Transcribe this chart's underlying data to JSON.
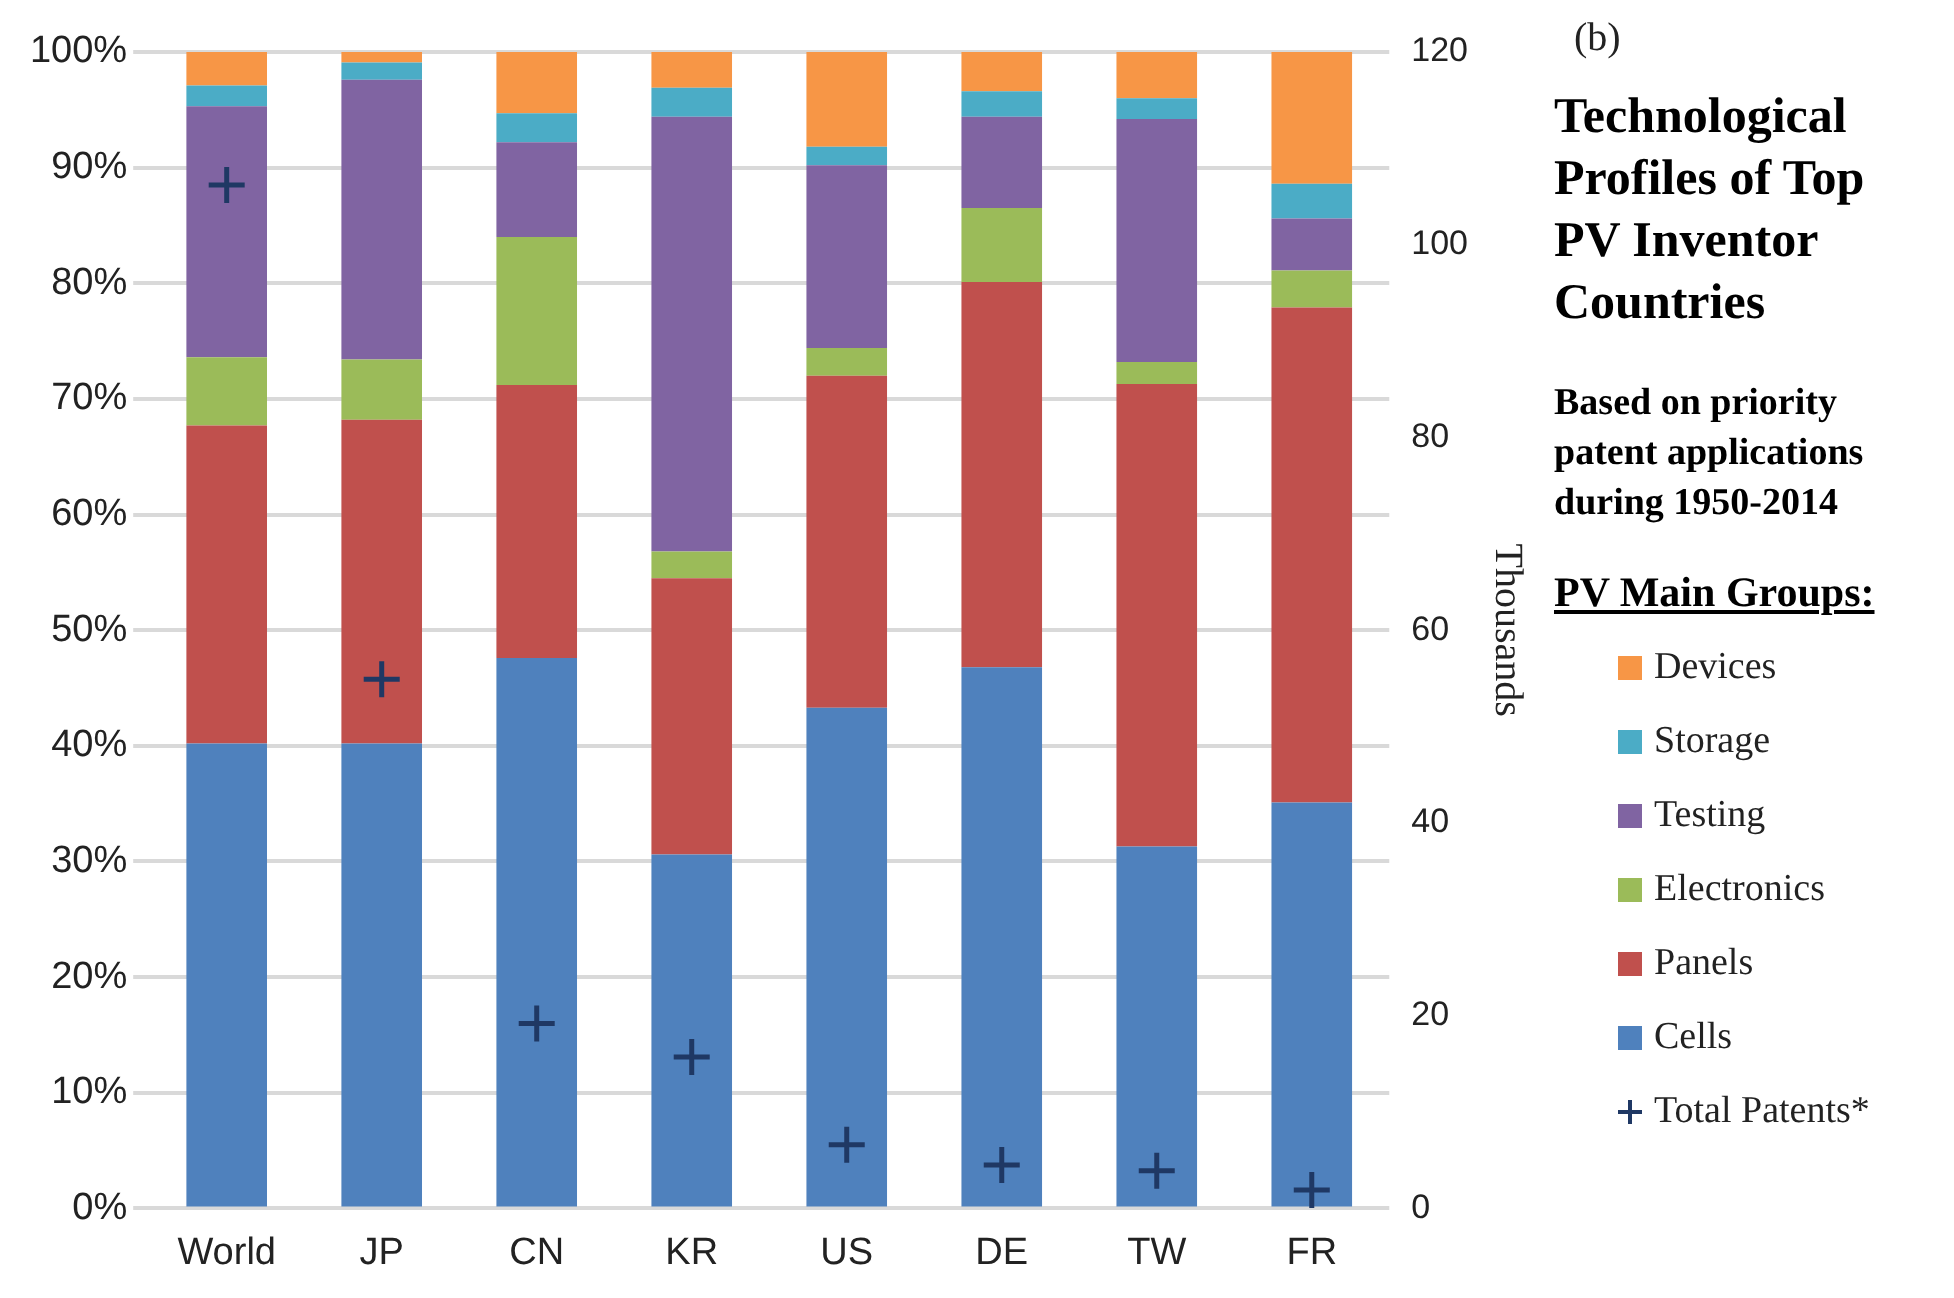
{
  "chart_data": {
    "type": "bar",
    "title": "Technological Profiles of  Top PV Inventor Countries",
    "subtitle": "Based on priority patent applications during 1950-2014",
    "annotations": [
      "(b)"
    ],
    "y2label": "Thousands",
    "legend_title": "PV Main Groups:",
    "legend": "right",
    "grid": "y",
    "stacked": true,
    "categories": [
      "World",
      "JP",
      "CN",
      "KR",
      "US",
      "DE",
      "TW",
      "FR"
    ],
    "ylim": [
      0,
      100
    ],
    "yticks": [
      {
        "value": 0,
        "label": "0%"
      },
      {
        "value": 10,
        "label": "10%"
      },
      {
        "value": 20,
        "label": "20%"
      },
      {
        "value": 30,
        "label": "30%"
      },
      {
        "value": 40,
        "label": "40%"
      },
      {
        "value": 50,
        "label": "50%"
      },
      {
        "value": 60,
        "label": "60%"
      },
      {
        "value": 70,
        "label": "70%"
      },
      {
        "value": 80,
        "label": "80%"
      },
      {
        "value": 90,
        "label": "90%"
      },
      {
        "value": 100,
        "label": "100%"
      }
    ],
    "y2lim": [
      0,
      120
    ],
    "y2ticks": [
      0,
      20,
      40,
      60,
      80,
      100,
      120
    ],
    "series": [
      {
        "name": "Cells",
        "color": "#4f81bd",
        "values": [
          40.2,
          40.2,
          47.6,
          30.6,
          43.3,
          46.8,
          31.3,
          35.1
        ]
      },
      {
        "name": "Panels",
        "color": "#c0504d",
        "values": [
          27.5,
          28.0,
          23.6,
          23.9,
          28.7,
          33.3,
          40.0,
          42.8
        ]
      },
      {
        "name": "Electronics",
        "color": "#9bbb59",
        "values": [
          5.9,
          5.2,
          12.8,
          2.3,
          2.4,
          6.4,
          1.9,
          3.2
        ]
      },
      {
        "name": "Testing",
        "color": "#8064a2",
        "values": [
          21.7,
          24.2,
          8.2,
          37.6,
          15.8,
          7.9,
          21.0,
          4.5
        ]
      },
      {
        "name": "Storage",
        "color": "#4bacc6",
        "values": [
          1.8,
          1.5,
          2.5,
          2.5,
          1.6,
          2.2,
          1.8,
          3.0
        ]
      },
      {
        "name": "Devices",
        "color": "#f79646",
        "values": [
          2.9,
          0.9,
          5.3,
          3.1,
          8.2,
          3.4,
          4.0,
          11.4
        ]
      },
      {
        "name": "Total Patents*",
        "type": "scatter",
        "axis": "y2",
        "marker": "cross",
        "color": "#1f3864",
        "values": [
          106.2,
          54.9,
          19.2,
          15.7,
          6.6,
          4.5,
          3.9,
          1.9
        ]
      }
    ]
  }
}
